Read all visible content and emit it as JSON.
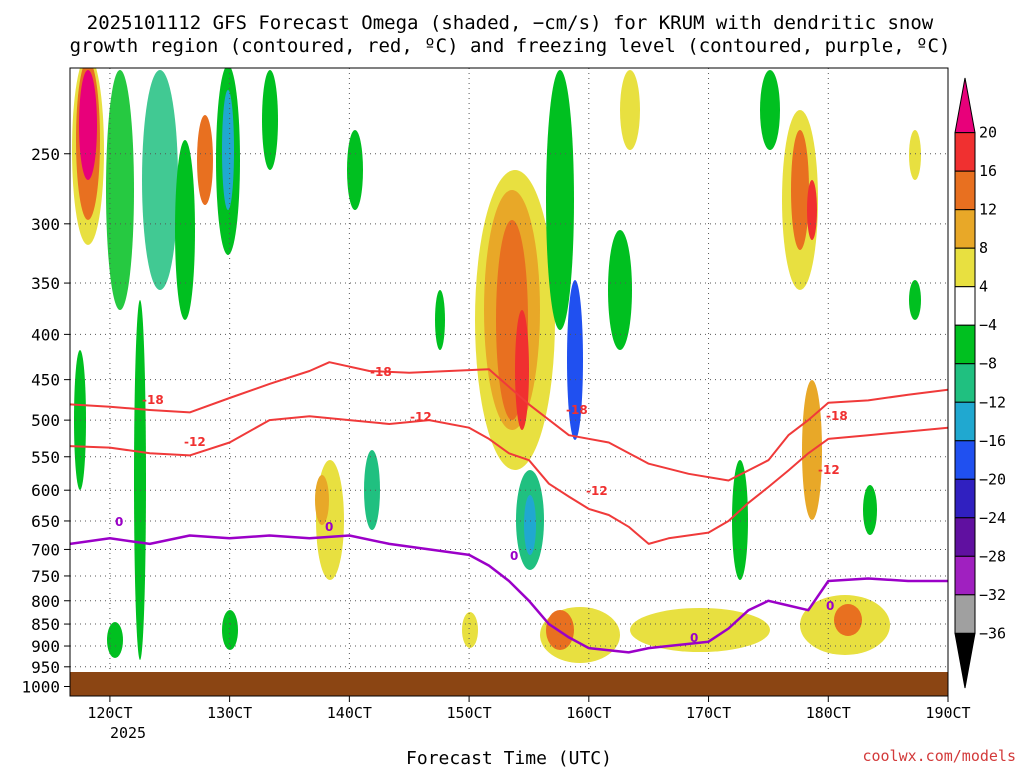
{
  "chart_data": {
    "type": "heatmap",
    "title_line1": "2025101112 GFS Forecast Omega (shaded, −cm/s) for KRUM with dendritic snow",
    "title_line2": "growth region (contoured, red, ºC) and freezing level (contoured, purple, ºC)",
    "xlabel": "Forecast Time (UTC)",
    "credit": "coolwx.com/models",
    "x_ticks": [
      "120CT",
      "130CT",
      "140CT",
      "150CT",
      "160CT",
      "170CT",
      "180CT",
      "190CT"
    ],
    "x_tick_hours": [
      12,
      24,
      36,
      48,
      60,
      72,
      84,
      96
    ],
    "year_label": "2025",
    "xlim_hours": [
      8,
      96
    ],
    "y_ticks": [
      250,
      300,
      350,
      400,
      450,
      500,
      550,
      600,
      650,
      700,
      750,
      800,
      850,
      900,
      950,
      1000
    ],
    "ylim_hpa": [
      1000,
      200
    ],
    "colorbar_levels": [
      "20",
      "16",
      "12",
      "8",
      "4",
      "−4",
      "−8",
      "−12",
      "−16",
      "−20",
      "−24",
      "−28",
      "−32",
      "−36"
    ],
    "colorbar_colors": [
      "#e8007a",
      "#f03030",
      "#e87020",
      "#e8a828",
      "#e8e040",
      "#ffffff",
      "#00c020",
      "#20c080",
      "#20a8d0",
      "#2050f0",
      "#3020c0",
      "#6010a0",
      "#a020c0",
      "#a0a0a0",
      "#000000"
    ],
    "contour_labels": {
      "red_18": "-18",
      "red_12": "-12",
      "purple_0": "0"
    },
    "series": [
      {
        "name": "-18C (red)",
        "x": [
          8,
          12,
          16,
          20,
          24,
          28,
          32,
          34,
          38,
          42,
          46,
          50,
          54,
          58,
          62,
          66,
          70,
          74,
          78,
          80,
          82,
          84,
          88,
          92,
          96
        ],
        "y": [
          480,
          483,
          487,
          490,
          472,
          455,
          440,
          430,
          440,
          442,
          440,
          438,
          480,
          520,
          530,
          560,
          575,
          585,
          555,
          520,
          500,
          478,
          475,
          468,
          462
        ]
      },
      {
        "name": "-12C (red)",
        "x": [
          8,
          12,
          16,
          20,
          24,
          28,
          32,
          36,
          40,
          44,
          48,
          50,
          52,
          54,
          56,
          58,
          60,
          62,
          64,
          66,
          68,
          72,
          74,
          76,
          78,
          80,
          82,
          84,
          88,
          92,
          96
        ],
        "y": [
          535,
          537,
          545,
          548,
          530,
          500,
          495,
          500,
          505,
          500,
          510,
          525,
          545,
          555,
          590,
          610,
          630,
          640,
          660,
          690,
          680,
          670,
          650,
          620,
          595,
          570,
          545,
          525,
          520,
          515,
          510
        ]
      },
      {
        "name": "0C freezing level (purple)",
        "x": [
          8,
          12,
          16,
          20,
          24,
          28,
          32,
          36,
          40,
          44,
          48,
          50,
          52,
          54,
          56,
          58,
          60,
          62,
          64,
          66,
          68,
          70,
          72,
          74,
          76,
          78,
          80,
          82,
          84,
          88,
          92,
          96
        ],
        "y": [
          690,
          680,
          690,
          675,
          680,
          675,
          680,
          675,
          690,
          700,
          710,
          730,
          760,
          800,
          850,
          880,
          905,
          910,
          915,
          905,
          900,
          895,
          890,
          860,
          820,
          800,
          810,
          820,
          760,
          755,
          760,
          760
        ]
      }
    ]
  }
}
